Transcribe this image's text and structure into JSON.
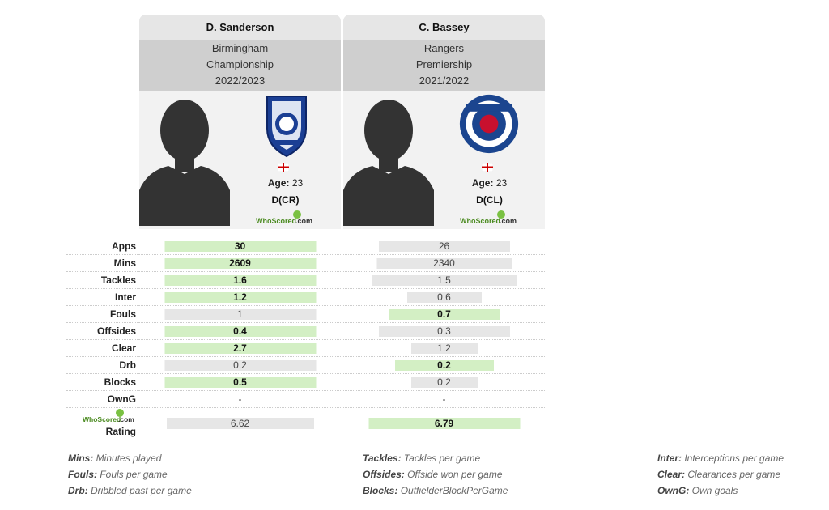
{
  "players": [
    {
      "name": "D. Sanderson",
      "club": "Birmingham",
      "league": "Championship",
      "season": "2022/2023",
      "age_label": "Age:",
      "age": "23",
      "position": "D(CR)",
      "badge_icon": "birmingham-city-badge-icon"
    },
    {
      "name": "C. Bassey",
      "club": "Rangers",
      "league": "Premiership",
      "season": "2021/2022",
      "age_label": "Age:",
      "age": "23",
      "position": "D(CL)",
      "badge_icon": "rangers-fc-badge-icon"
    }
  ],
  "stats": [
    {
      "label": "Apps",
      "a": "30",
      "b": "26",
      "winner": "a",
      "bar_a": 0.75,
      "bar_b": 0.65
    },
    {
      "label": "Mins",
      "a": "2609",
      "b": "2340",
      "winner": "a",
      "bar_a": 0.75,
      "bar_b": 0.67
    },
    {
      "label": "Tackles",
      "a": "1.6",
      "b": "1.5",
      "winner": "a",
      "bar_a": 0.75,
      "bar_b": 0.72
    },
    {
      "label": "Inter",
      "a": "1.2",
      "b": "0.6",
      "winner": "a",
      "bar_a": 0.75,
      "bar_b": 0.37
    },
    {
      "label": "Fouls",
      "a": "1",
      "b": "0.7",
      "winner": "b",
      "bar_a": 0.75,
      "bar_b": 0.55
    },
    {
      "label": "Offsides",
      "a": "0.4",
      "b": "0.3",
      "winner": "a",
      "bar_a": 0.75,
      "bar_b": 0.65
    },
    {
      "label": "Clear",
      "a": "2.7",
      "b": "1.2",
      "winner": "a",
      "bar_a": 0.75,
      "bar_b": 0.33
    },
    {
      "label": "Drb",
      "a": "0.2",
      "b": "0.2",
      "winner": "b",
      "bar_a": 0.75,
      "bar_b": 0.49
    },
    {
      "label": "Blocks",
      "a": "0.5",
      "b": "0.2",
      "winner": "a",
      "bar_a": 0.75,
      "bar_b": 0.33
    },
    {
      "label": "OwnG",
      "a": "-",
      "b": "-",
      "winner": "",
      "bar_a": 0,
      "bar_b": 0
    }
  ],
  "rating": {
    "label": "Rating",
    "a": "6.62",
    "b": "6.79",
    "winner": "b",
    "bar_a": 0.73,
    "bar_b": 0.75
  },
  "whoscored_logo": {
    "text": "WhoScored",
    "suffix": ".com"
  },
  "legend": [
    [
      {
        "abbr": "Mins",
        "desc": "Minutes played"
      },
      {
        "abbr": "Fouls",
        "desc": "Fouls per game"
      },
      {
        "abbr": "Drb",
        "desc": "Dribbled past per game"
      }
    ],
    [
      {
        "abbr": "Tackles",
        "desc": "Tackles per game"
      },
      {
        "abbr": "Offsides",
        "desc": "Offside won per game"
      },
      {
        "abbr": "Blocks",
        "desc": "OutfielderBlockPerGame"
      }
    ],
    [
      {
        "abbr": "Inter",
        "desc": "Interceptions per game"
      },
      {
        "abbr": "Clear",
        "desc": "Clearances per game"
      },
      {
        "abbr": "OwnG",
        "desc": "Own goals"
      }
    ]
  ],
  "colors": {
    "win_bar": "#d3efc4",
    "neutral_bar": "#e6e6e6",
    "info_bg": "#cfcfcf",
    "profile_bg": "#f2f2f2"
  }
}
